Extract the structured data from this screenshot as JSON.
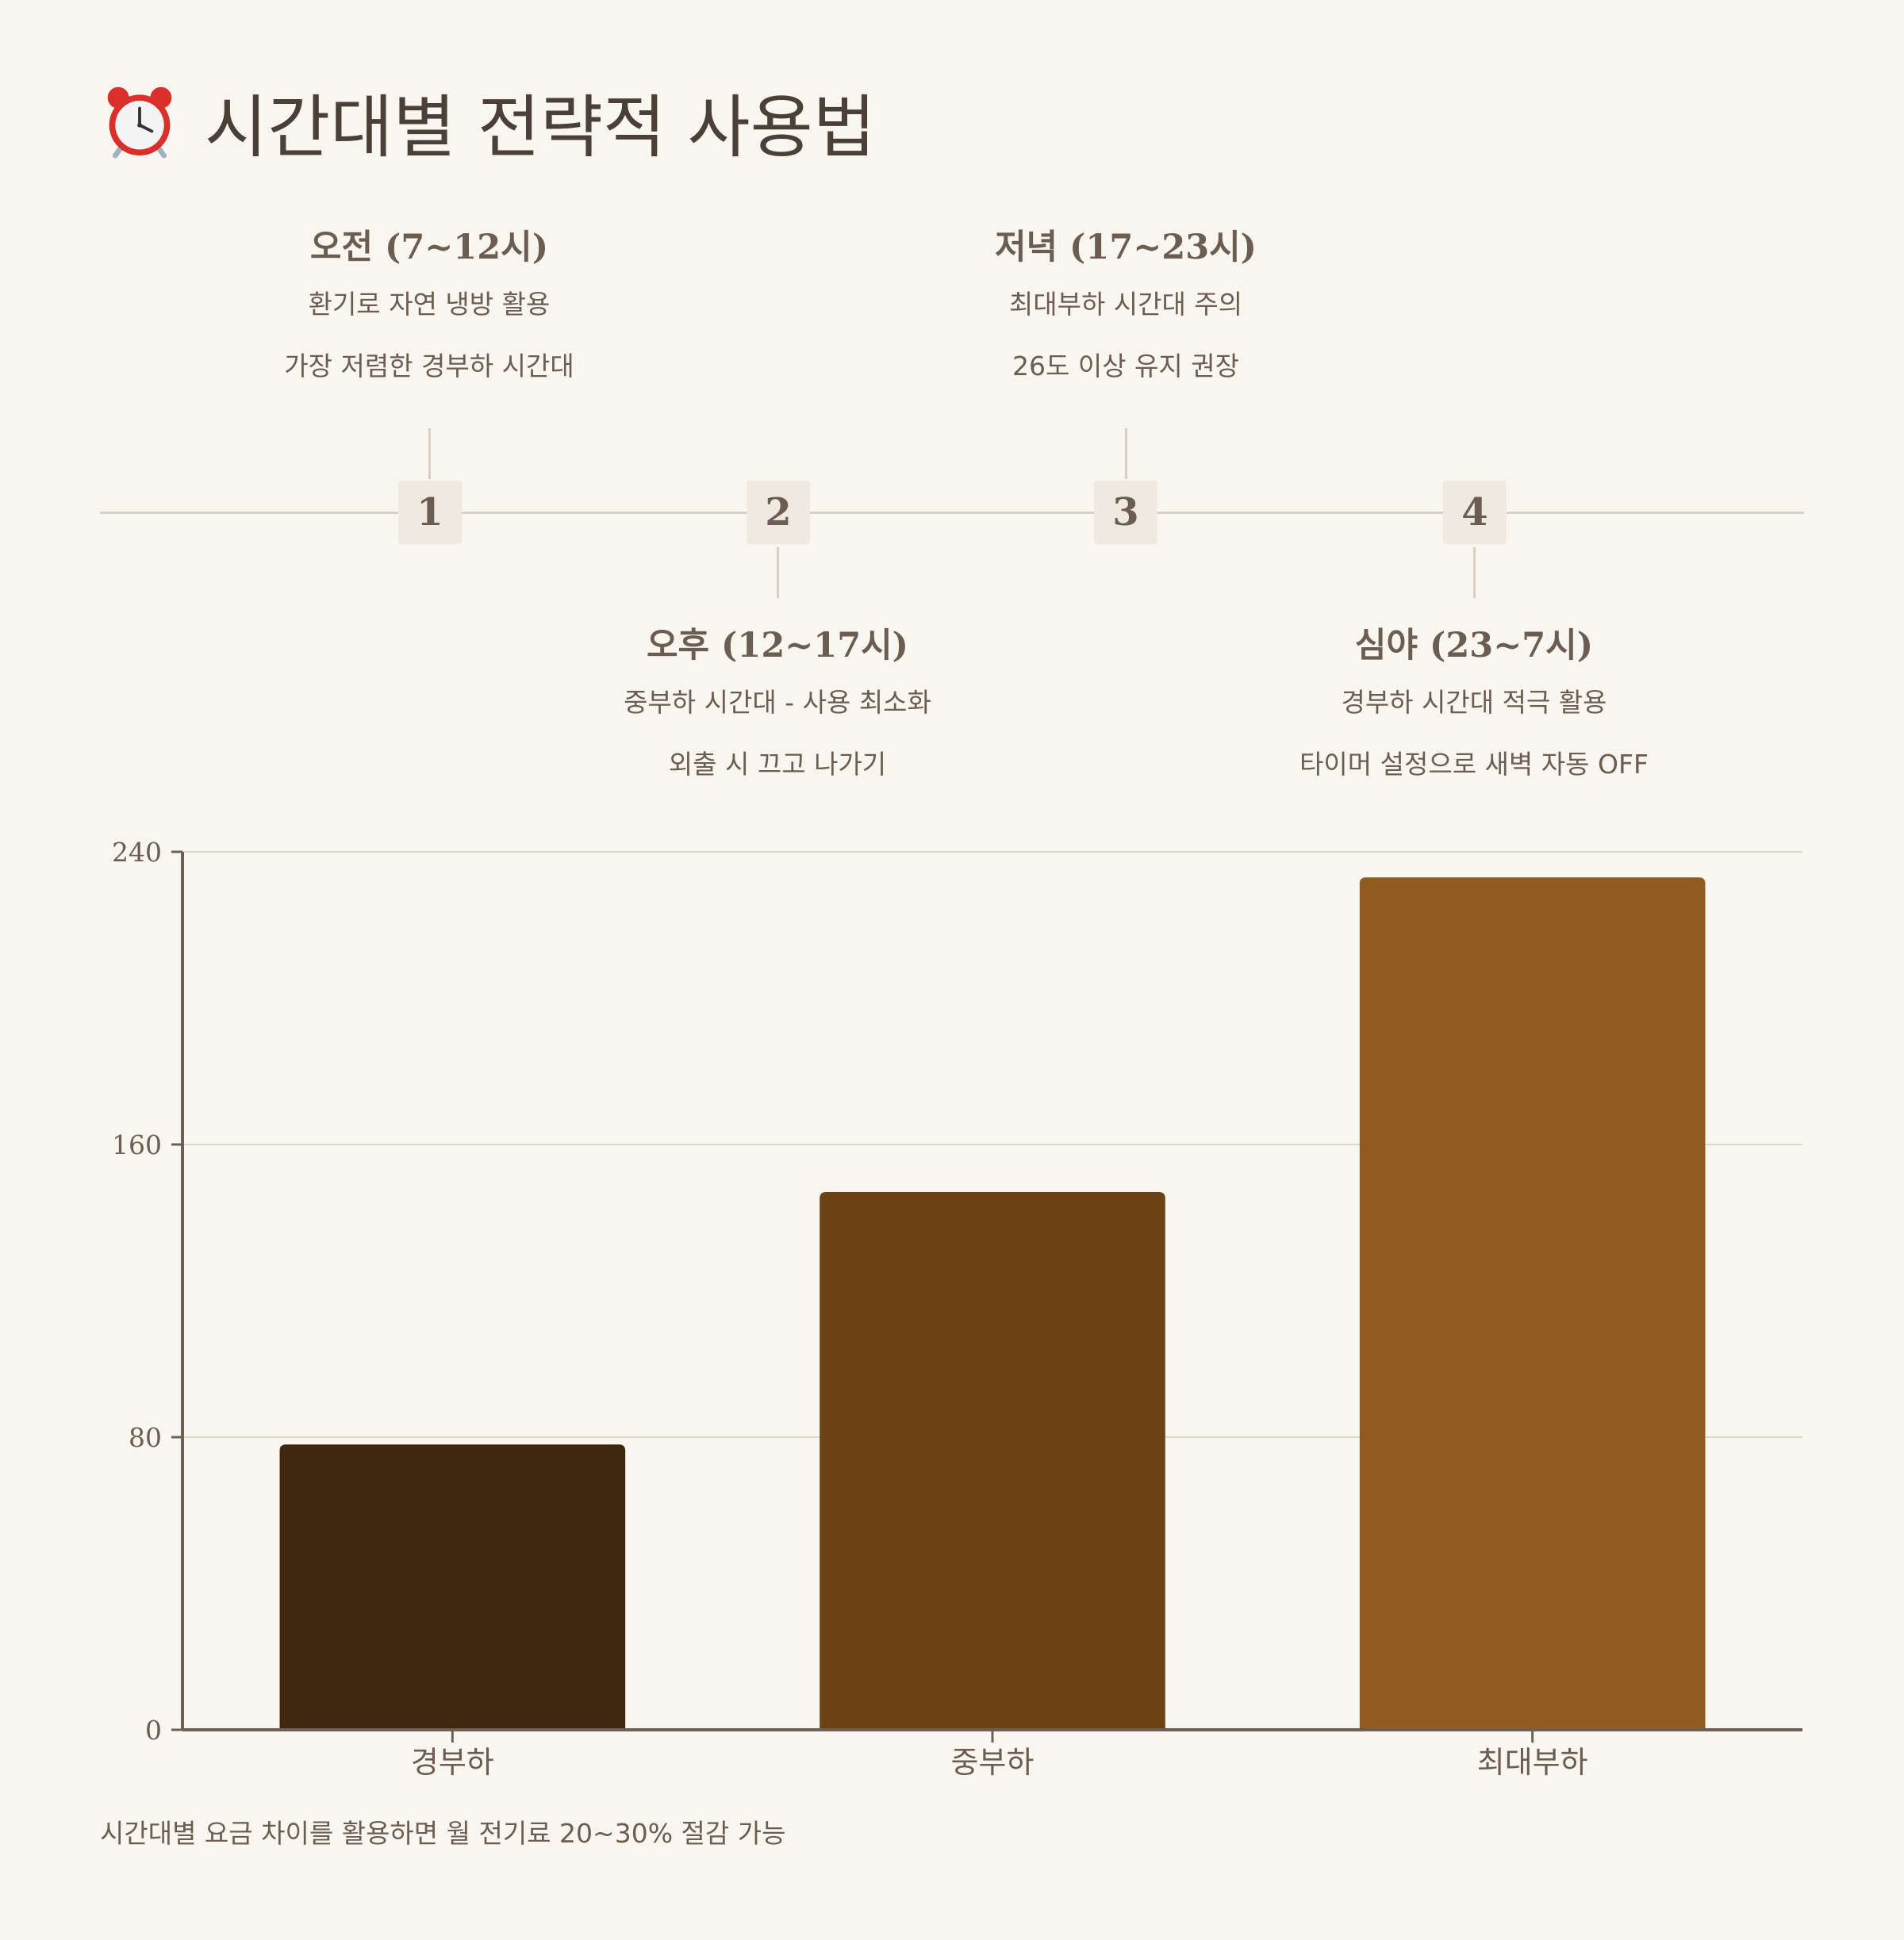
{
  "header": {
    "title": "시간대별 전략적 사용법",
    "icon": "alarm-clock-icon"
  },
  "timeline": {
    "items": [
      {
        "number": "1",
        "heading": "오전 (7~12시)",
        "line1": "환기로 자연 냉방 활용",
        "line2": "가장 저렴한 경부하 시간대"
      },
      {
        "number": "2",
        "heading": "오후 (12~17시)",
        "line1": "중부하 시간대 - 사용 최소화",
        "line2": "외출 시 끄고 나가기"
      },
      {
        "number": "3",
        "heading": "저녁 (17~23시)",
        "line1": "최대부하 시간대 주의",
        "line2": "26도 이상 유지 권장"
      },
      {
        "number": "4",
        "heading": "심야 (23~7시)",
        "line1": "경부하 시간대 적극 활용",
        "line2": "타이머 설정으로 새벽 자동 OFF"
      }
    ]
  },
  "chart_data": {
    "type": "bar",
    "categories": [
      "경부하",
      "중부하",
      "최대부하"
    ],
    "values": [
      78,
      147,
      233
    ],
    "colors": [
      "#3e270e",
      "#6a4216",
      "#905b1f"
    ],
    "ylim": [
      0,
      240
    ],
    "yticks": [
      "0",
      "80",
      "160",
      "240"
    ],
    "grid": true,
    "title": "",
    "xlabel": "",
    "ylabel": ""
  },
  "footnote": "시간대별 요금 차이를 활용하면 월 전기료 20~30% 절감 가능",
  "colors": {
    "background": "#f9f6f0",
    "text": "#6b5d52",
    "axis": "#6e6056",
    "grid": "#dcd6cc",
    "node_bg": "#efe9df"
  }
}
